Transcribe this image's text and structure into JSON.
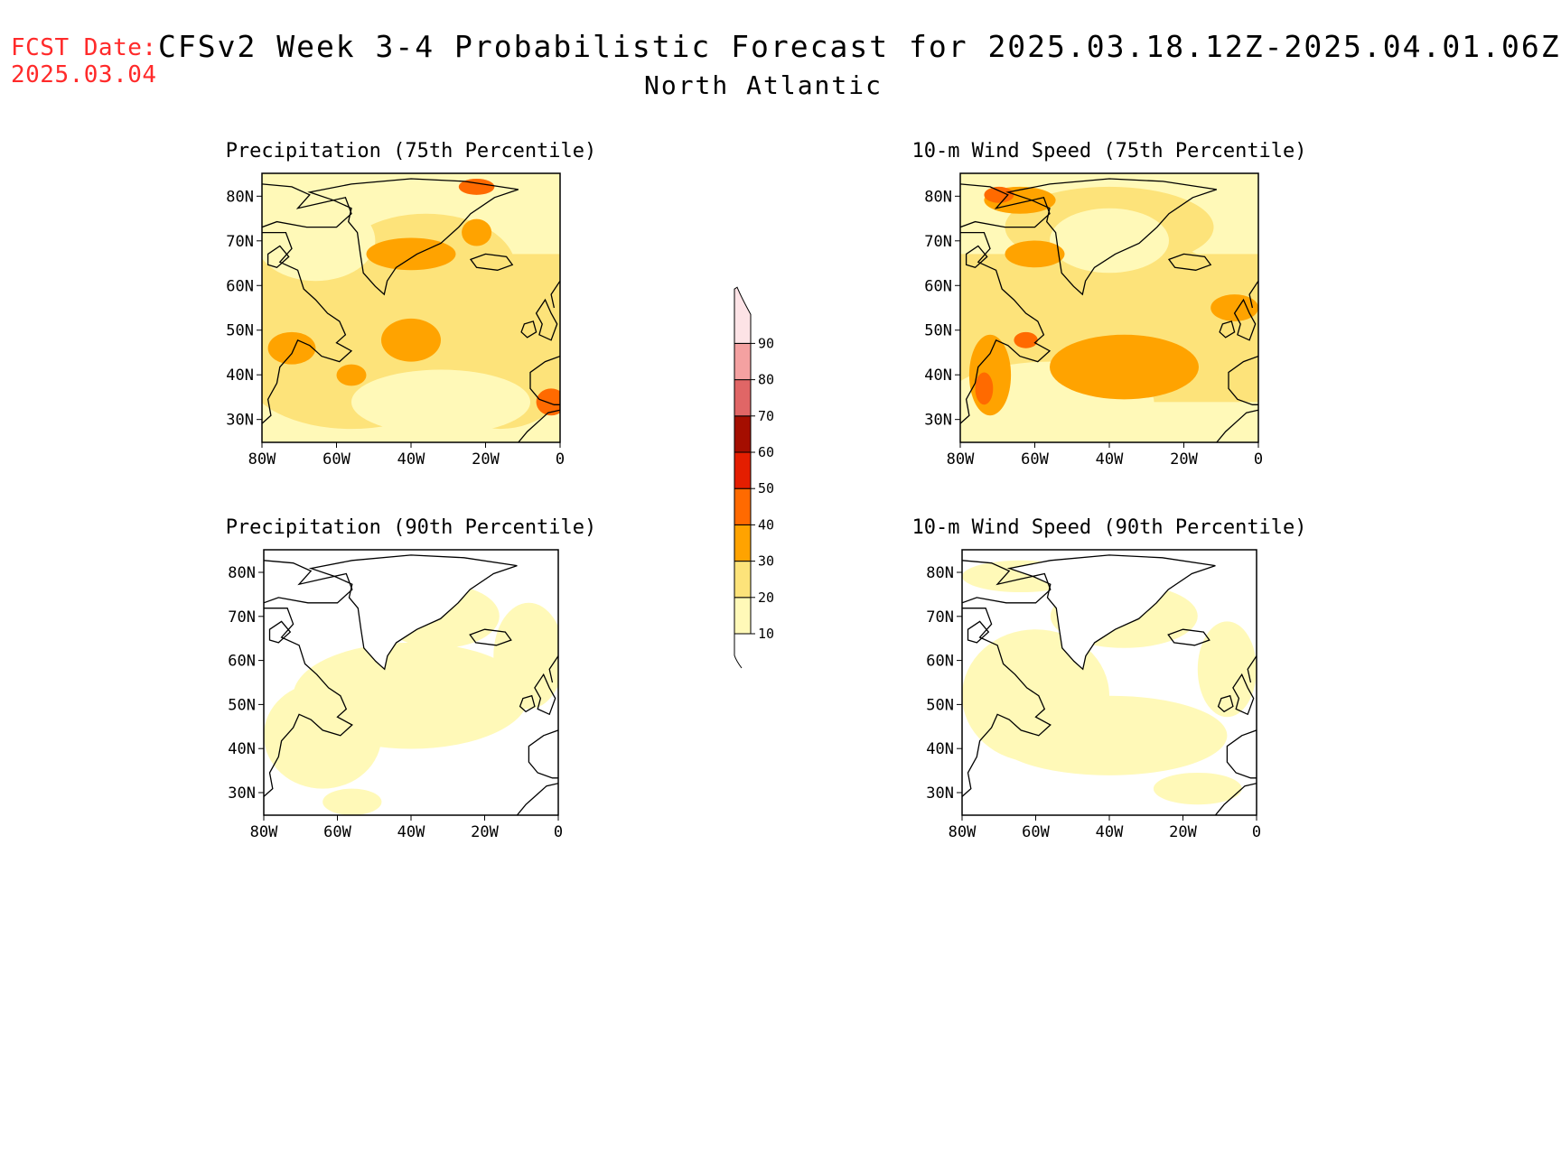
{
  "header": {
    "fcst_label": "FCST Date:",
    "fcst_date": "2025.03.04",
    "title": "CFSv2 Week 3-4 Probabilistic Forecast for 2025.03.18.12Z-2025.04.01.06Z",
    "region": "North Atlantic"
  },
  "axes": {
    "lat_labels": [
      "80N",
      "70N",
      "60N",
      "50N",
      "40N",
      "30N"
    ],
    "lon_labels": [
      "80W",
      "60W",
      "40W",
      "20W",
      "0"
    ]
  },
  "panels": [
    {
      "id": "precip-75",
      "title": "Precipitation (75th Percentile)",
      "fill_level": "high",
      "variable": "precipitation"
    },
    {
      "id": "wind-75",
      "title": "10-m Wind Speed (75th Percentile)",
      "fill_level": "high",
      "variable": "wind"
    },
    {
      "id": "precip-90",
      "title": "Precipitation (90th Percentile)",
      "fill_level": "low",
      "variable": "precipitation"
    },
    {
      "id": "wind-90",
      "title": "10-m Wind Speed (90th Percentile)",
      "fill_level": "low",
      "variable": "wind"
    }
  ],
  "colorbar": {
    "levels": [
      "10",
      "20",
      "30",
      "40",
      "50",
      "60",
      "70",
      "80",
      "90"
    ],
    "colors": [
      "#fff9b8",
      "#fde37a",
      "#ffa300",
      "#ff6a00",
      "#e41e00",
      "#a40e00",
      "#e06666",
      "#f4a1a1",
      "#fde3e6"
    ]
  }
}
